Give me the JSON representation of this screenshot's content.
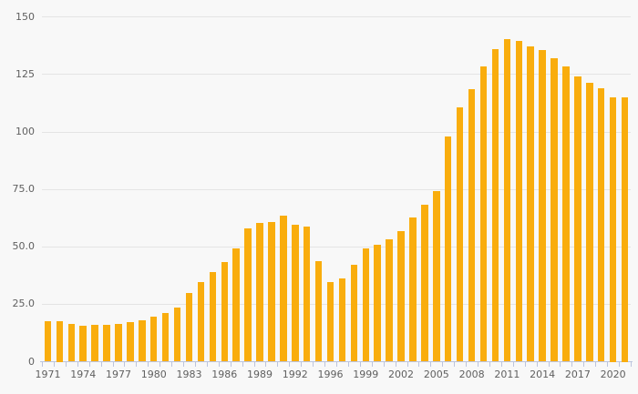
{
  "page": {
    "background": "#F8F8F8",
    "title": ""
  },
  "chart_data": {
    "type": "bar",
    "title": "",
    "subtitle": "",
    "legend": "none",
    "grid": "horizontal",
    "categories": [
      "1971",
      "1972",
      "1973",
      "1974",
      "1975",
      "1976",
      "1977",
      "1978",
      "1979",
      "1980",
      "1981",
      "1982",
      "1983",
      "1984",
      "1985",
      "1986",
      "1987",
      "1988",
      "1989",
      "1990",
      "1991",
      "1992",
      "1994",
      "1995",
      "1996",
      "1997",
      "1998",
      "1999",
      "2000",
      "2001",
      "2002",
      "2003",
      "2004",
      "2005",
      "2006",
      "2007",
      "2008",
      "2009",
      "2010",
      "2011",
      "2012",
      "2013",
      "2014",
      "2015",
      "2016",
      "2017",
      "2018",
      "2019",
      "2020",
      "2021"
    ],
    "values": [
      17.7,
      17.5,
      16.3,
      15.5,
      15.9,
      15.9,
      16.3,
      17.3,
      18,
      19.6,
      21,
      23.7,
      29.9,
      34.5,
      38.9,
      43.3,
      49.4,
      58,
      60.3,
      60.8,
      63.7,
      59.8,
      58.8,
      43.7,
      34.8,
      36.1,
      42,
      49.2,
      51,
      53.3,
      57,
      62.6,
      68.5,
      74.3,
      98,
      110.5,
      118.8,
      128.6,
      135.9,
      140.5,
      139.6,
      137.3,
      135.7,
      132,
      128.5,
      124,
      121.3,
      119,
      115,
      115
    ],
    "x_axis": {
      "label": "",
      "tick_labels": [
        "1971",
        "1974",
        "1977",
        "1980",
        "1983",
        "1986",
        "1989",
        "1992",
        "1996",
        "1999",
        "2002",
        "2005",
        "2008",
        "2011",
        "2014",
        "2017",
        "2020"
      ]
    },
    "y_axis": {
      "label": "",
      "range": [
        0,
        150
      ],
      "tick_values": [
        0,
        25,
        50,
        75,
        100,
        125,
        150
      ],
      "tick_labels": [
        "0",
        "25.0",
        "50.0",
        "75.0",
        "100",
        "125",
        "150"
      ]
    },
    "colors": {
      "bar": "#F9AD0D",
      "grid": "#E4E4E4",
      "axis": "#BCC4DE",
      "text": "#5F5F5F"
    }
  }
}
